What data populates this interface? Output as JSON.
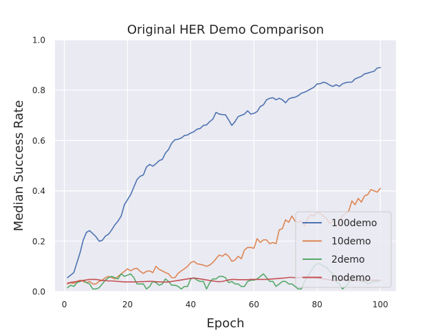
{
  "chart_data": {
    "type": "line",
    "title": "Original HER Demo Comparison",
    "xlabel": "Epoch",
    "ylabel": "Median Success Rate",
    "xlim": [
      -2.95,
      104.95
    ],
    "ylim": [
      0.0,
      1.0
    ],
    "xticks": [
      0,
      20,
      40,
      60,
      80,
      100
    ],
    "xtick_labels": [
      "0",
      "20",
      "40",
      "60",
      "80",
      "100"
    ],
    "yticks": [
      0.0,
      0.2,
      0.4,
      0.6,
      0.8,
      1.0
    ],
    "ytick_labels": [
      "0.0",
      "0.2",
      "0.4",
      "0.6",
      "0.8",
      "1.0"
    ],
    "grid": true,
    "legend_position": "lower-right",
    "x": [
      1,
      2,
      3,
      4,
      5,
      6,
      7,
      8,
      9,
      10,
      11,
      12,
      13,
      14,
      15,
      16,
      17,
      18,
      19,
      20,
      21,
      22,
      23,
      24,
      25,
      26,
      27,
      28,
      29,
      30,
      31,
      32,
      33,
      34,
      35,
      36,
      37,
      38,
      39,
      40,
      41,
      42,
      43,
      44,
      45,
      46,
      47,
      48,
      49,
      50,
      51,
      52,
      53,
      54,
      55,
      56,
      57,
      58,
      59,
      60,
      61,
      62,
      63,
      64,
      65,
      66,
      67,
      68,
      69,
      70,
      71,
      72,
      73,
      74,
      75,
      76,
      77,
      78,
      79,
      80,
      81,
      82,
      83,
      84,
      85,
      86,
      87,
      88,
      89,
      90,
      91,
      92,
      93,
      94,
      95,
      96,
      97,
      98,
      99,
      100
    ],
    "series": [
      {
        "name": "100demo",
        "color": "#4c72b0",
        "values": [
          0.055,
          0.065,
          0.075,
          0.115,
          0.155,
          0.205,
          0.235,
          0.242,
          0.23,
          0.218,
          0.2,
          0.203,
          0.22,
          0.228,
          0.245,
          0.265,
          0.28,
          0.3,
          0.345,
          0.365,
          0.385,
          0.415,
          0.445,
          0.458,
          0.463,
          0.495,
          0.505,
          0.498,
          0.508,
          0.52,
          0.525,
          0.55,
          0.565,
          0.59,
          0.603,
          0.605,
          0.61,
          0.62,
          0.622,
          0.63,
          0.635,
          0.645,
          0.648,
          0.66,
          0.662,
          0.675,
          0.685,
          0.712,
          0.705,
          0.703,
          0.702,
          0.682,
          0.66,
          0.675,
          0.695,
          0.7,
          0.705,
          0.718,
          0.705,
          0.708,
          0.715,
          0.735,
          0.742,
          0.762,
          0.768,
          0.77,
          0.762,
          0.768,
          0.762,
          0.75,
          0.765,
          0.77,
          0.772,
          0.778,
          0.788,
          0.792,
          0.798,
          0.805,
          0.812,
          0.825,
          0.826,
          0.832,
          0.828,
          0.82,
          0.815,
          0.822,
          0.815,
          0.825,
          0.83,
          0.832,
          0.832,
          0.845,
          0.85,
          0.855,
          0.865,
          0.868,
          0.872,
          0.875,
          0.888,
          0.89
        ]
      },
      {
        "name": "10demo",
        "color": "#dd8452",
        "values": [
          0.03,
          0.035,
          0.032,
          0.04,
          0.045,
          0.04,
          0.035,
          0.04,
          0.03,
          0.03,
          0.04,
          0.045,
          0.055,
          0.06,
          0.055,
          0.05,
          0.06,
          0.07,
          0.08,
          0.09,
          0.082,
          0.09,
          0.092,
          0.08,
          0.072,
          0.08,
          0.082,
          0.075,
          0.1,
          0.088,
          0.082,
          0.075,
          0.07,
          0.055,
          0.055,
          0.072,
          0.082,
          0.09,
          0.1,
          0.115,
          0.12,
          0.11,
          0.108,
          0.105,
          0.1,
          0.105,
          0.115,
          0.13,
          0.145,
          0.14,
          0.15,
          0.14,
          0.12,
          0.125,
          0.14,
          0.13,
          0.165,
          0.175,
          0.175,
          0.172,
          0.21,
          0.195,
          0.205,
          0.205,
          0.19,
          0.195,
          0.19,
          0.245,
          0.25,
          0.285,
          0.275,
          0.3,
          0.28,
          0.275,
          0.28,
          0.26,
          0.29,
          0.305,
          0.3,
          0.315,
          0.31,
          0.3,
          0.29,
          0.27,
          0.28,
          0.26,
          0.275,
          0.3,
          0.31,
          0.32,
          0.36,
          0.345,
          0.37,
          0.355,
          0.38,
          0.385,
          0.405,
          0.4,
          0.395,
          0.41
        ]
      },
      {
        "name": "2demo",
        "color": "#55a868",
        "values": [
          0.015,
          0.025,
          0.02,
          0.035,
          0.04,
          0.045,
          0.035,
          0.03,
          0.01,
          0.01,
          0.015,
          0.03,
          0.045,
          0.055,
          0.06,
          0.055,
          0.05,
          0.07,
          0.06,
          0.065,
          0.07,
          0.055,
          0.03,
          0.03,
          0.03,
          0.01,
          0.02,
          0.04,
          0.035,
          0.025,
          0.03,
          0.05,
          0.04,
          0.025,
          0.025,
          0.02,
          0.01,
          0.02,
          0.02,
          0.05,
          0.055,
          0.045,
          0.04,
          0.04,
          0.01,
          0.035,
          0.05,
          0.05,
          0.06,
          0.06,
          0.055,
          0.035,
          0.04,
          0.03,
          0.03,
          0.02,
          0.02,
          0.04,
          0.045,
          0.045,
          0.05,
          0.06,
          0.07,
          0.055,
          0.04,
          0.04,
          0.02,
          0.03,
          0.04,
          0.04,
          0.03,
          0.03,
          0.02,
          0.01,
          0.01,
          0.04,
          0.06,
          0.08,
          0.1,
          0.11,
          0.11,
          0.1,
          0.095,
          0.08,
          0.07,
          0.04,
          0.03,
          0.01,
          0.02,
          0.035,
          0.05,
          0.06,
          0.05,
          0.04,
          0.04,
          0.03,
          0.035,
          0.04,
          0.04,
          0.045
        ]
      },
      {
        "name": "nodemo",
        "color": "#c44e52",
        "values": [
          0.033,
          0.036,
          0.038,
          0.04,
          0.042,
          0.044,
          0.046,
          0.048,
          0.048,
          0.048,
          0.046,
          0.044,
          0.043,
          0.042,
          0.042,
          0.041,
          0.04,
          0.039,
          0.038,
          0.038,
          0.038,
          0.038,
          0.038,
          0.039,
          0.039,
          0.04,
          0.04,
          0.04,
          0.039,
          0.038,
          0.038,
          0.037,
          0.038,
          0.04,
          0.042,
          0.044,
          0.046,
          0.048,
          0.05,
          0.052,
          0.053,
          0.052,
          0.05,
          0.048,
          0.046,
          0.044,
          0.042,
          0.04,
          0.039,
          0.04,
          0.043,
          0.046,
          0.048,
          0.048,
          0.047,
          0.047,
          0.047,
          0.047,
          0.048,
          0.048,
          0.048,
          0.048,
          0.048,
          0.048,
          0.049,
          0.05,
          0.051,
          0.052,
          0.053,
          0.054,
          0.056,
          0.056,
          0.055,
          0.055,
          0.056,
          0.057,
          0.057,
          0.056,
          0.055,
          0.054,
          0.052,
          0.05,
          0.048,
          0.046,
          0.044,
          0.044,
          0.045,
          0.046,
          0.046,
          0.045,
          0.045,
          0.045,
          0.045,
          0.045,
          0.045,
          0.045,
          0.045,
          0.045,
          0.045,
          0.045
        ]
      }
    ]
  },
  "style": {
    "plot_background": "#eaeaf2",
    "grid_color": "#ffffff",
    "text_color": "#262626",
    "legend_border": "#cccccc"
  }
}
